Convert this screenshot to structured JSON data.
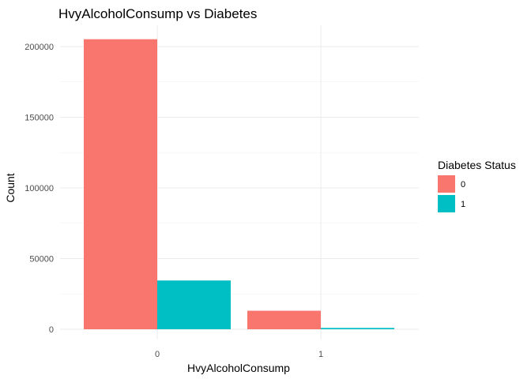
{
  "chart_data": {
    "type": "bar",
    "title": "HvyAlcoholConsump vs Diabetes",
    "xlabel": "HvyAlcoholConsump",
    "ylabel": "Count",
    "categories": [
      "0",
      "1"
    ],
    "series": [
      {
        "name": "0",
        "values": [
          205200,
          13100
        ],
        "color": "#F8766D"
      },
      {
        "name": "1",
        "values": [
          34500,
          950
        ],
        "color": "#00BFC4"
      }
    ],
    "ylim": [
      0,
      212000
    ],
    "yticks": [
      0,
      50000,
      100000,
      150000,
      200000
    ],
    "ytick_labels": [
      "0",
      "50000",
      "100000",
      "150000",
      "200000"
    ],
    "legend": {
      "title": "Diabetes Status",
      "placement": "right"
    },
    "grid": true
  }
}
